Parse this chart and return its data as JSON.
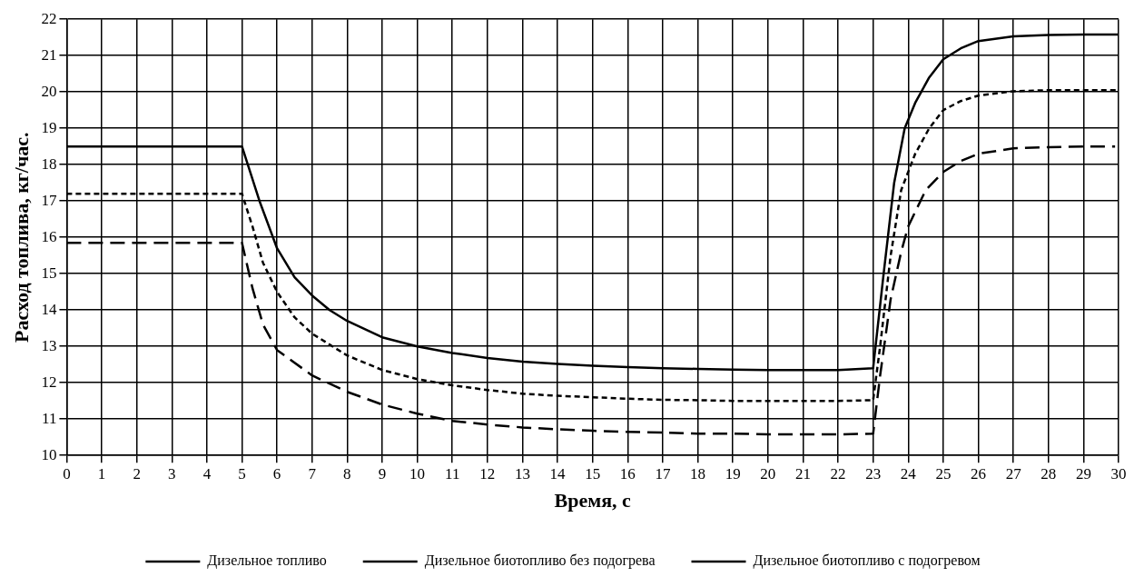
{
  "chart_data": {
    "type": "line",
    "xlabel": "Время, с",
    "ylabel": "Расход топлива, кг/час.",
    "xlim": [
      0,
      30
    ],
    "ylim": [
      10,
      22
    ],
    "xticks": [
      0,
      1,
      2,
      3,
      4,
      5,
      6,
      7,
      8,
      9,
      10,
      11,
      12,
      13,
      14,
      15,
      16,
      17,
      18,
      19,
      20,
      21,
      22,
      23,
      24,
      25,
      26,
      27,
      28,
      29,
      30
    ],
    "yticks": [
      10,
      11,
      12,
      13,
      14,
      15,
      16,
      17,
      18,
      19,
      20,
      21,
      22
    ],
    "grid": true,
    "legend": "bottom",
    "marker": "none",
    "series": [
      {
        "name": "Дизельное топливо",
        "color": "#000000",
        "line_style": "dashed",
        "x": [
          0,
          5,
          5.3,
          5.6,
          6,
          7,
          8,
          9,
          10,
          11,
          12,
          13,
          14,
          15,
          16,
          17,
          18,
          19,
          20,
          21,
          22,
          23,
          23.2,
          23.5,
          23.8,
          24,
          24.5,
          25,
          25.5,
          26,
          27,
          28,
          29,
          29.9
        ],
        "values": [
          15.85,
          15.85,
          14.6,
          13.6,
          12.9,
          12.2,
          11.75,
          11.4,
          11.15,
          10.95,
          10.85,
          10.77,
          10.72,
          10.68,
          10.65,
          10.63,
          10.6,
          10.6,
          10.58,
          10.58,
          10.58,
          10.6,
          12.2,
          14.3,
          15.6,
          16.3,
          17.3,
          17.8,
          18.1,
          18.3,
          18.45,
          18.48,
          18.5,
          18.5
        ]
      },
      {
        "name": "Дизельное биотопливо без подогрева",
        "color": "#000000",
        "line_style": "solid",
        "x": [
          0,
          5,
          5.5,
          6,
          6.5,
          7,
          7.5,
          8,
          9,
          10,
          11,
          12,
          13,
          14,
          15,
          16,
          17,
          18,
          19,
          20,
          21,
          22,
          23,
          23.3,
          23.6,
          23.9,
          24.2,
          24.6,
          25,
          25.5,
          26,
          27,
          28,
          29,
          30
        ],
        "values": [
          18.5,
          18.5,
          17.0,
          15.7,
          14.9,
          14.4,
          14.0,
          13.7,
          13.25,
          13.0,
          12.82,
          12.68,
          12.58,
          12.52,
          12.47,
          12.43,
          12.4,
          12.38,
          12.36,
          12.35,
          12.35,
          12.35,
          12.4,
          15,
          17.5,
          19,
          19.7,
          20.4,
          20.9,
          21.2,
          21.4,
          21.53,
          21.57,
          21.58,
          21.58
        ]
      },
      {
        "name": "Дизельное биотопливо с подогревом",
        "color": "#000000",
        "line_style": "dotted",
        "x": [
          0,
          5,
          5.3,
          5.6,
          6,
          6.5,
          7,
          8,
          9,
          10,
          11,
          12,
          13,
          14,
          15,
          16,
          17,
          18,
          19,
          20,
          21,
          22,
          23,
          23.2,
          23.5,
          23.8,
          24.2,
          24.6,
          25,
          25.5,
          26,
          27,
          28,
          29,
          30
        ],
        "values": [
          17.2,
          17.2,
          16.3,
          15.3,
          14.5,
          13.8,
          13.35,
          12.75,
          12.35,
          12.1,
          11.93,
          11.8,
          11.7,
          11.64,
          11.6,
          11.56,
          11.53,
          11.52,
          11.5,
          11.5,
          11.5,
          11.5,
          11.52,
          13,
          15.5,
          17.3,
          18.3,
          19.0,
          19.5,
          19.75,
          19.9,
          20.02,
          20.05,
          20.05,
          20.05
        ]
      }
    ]
  }
}
